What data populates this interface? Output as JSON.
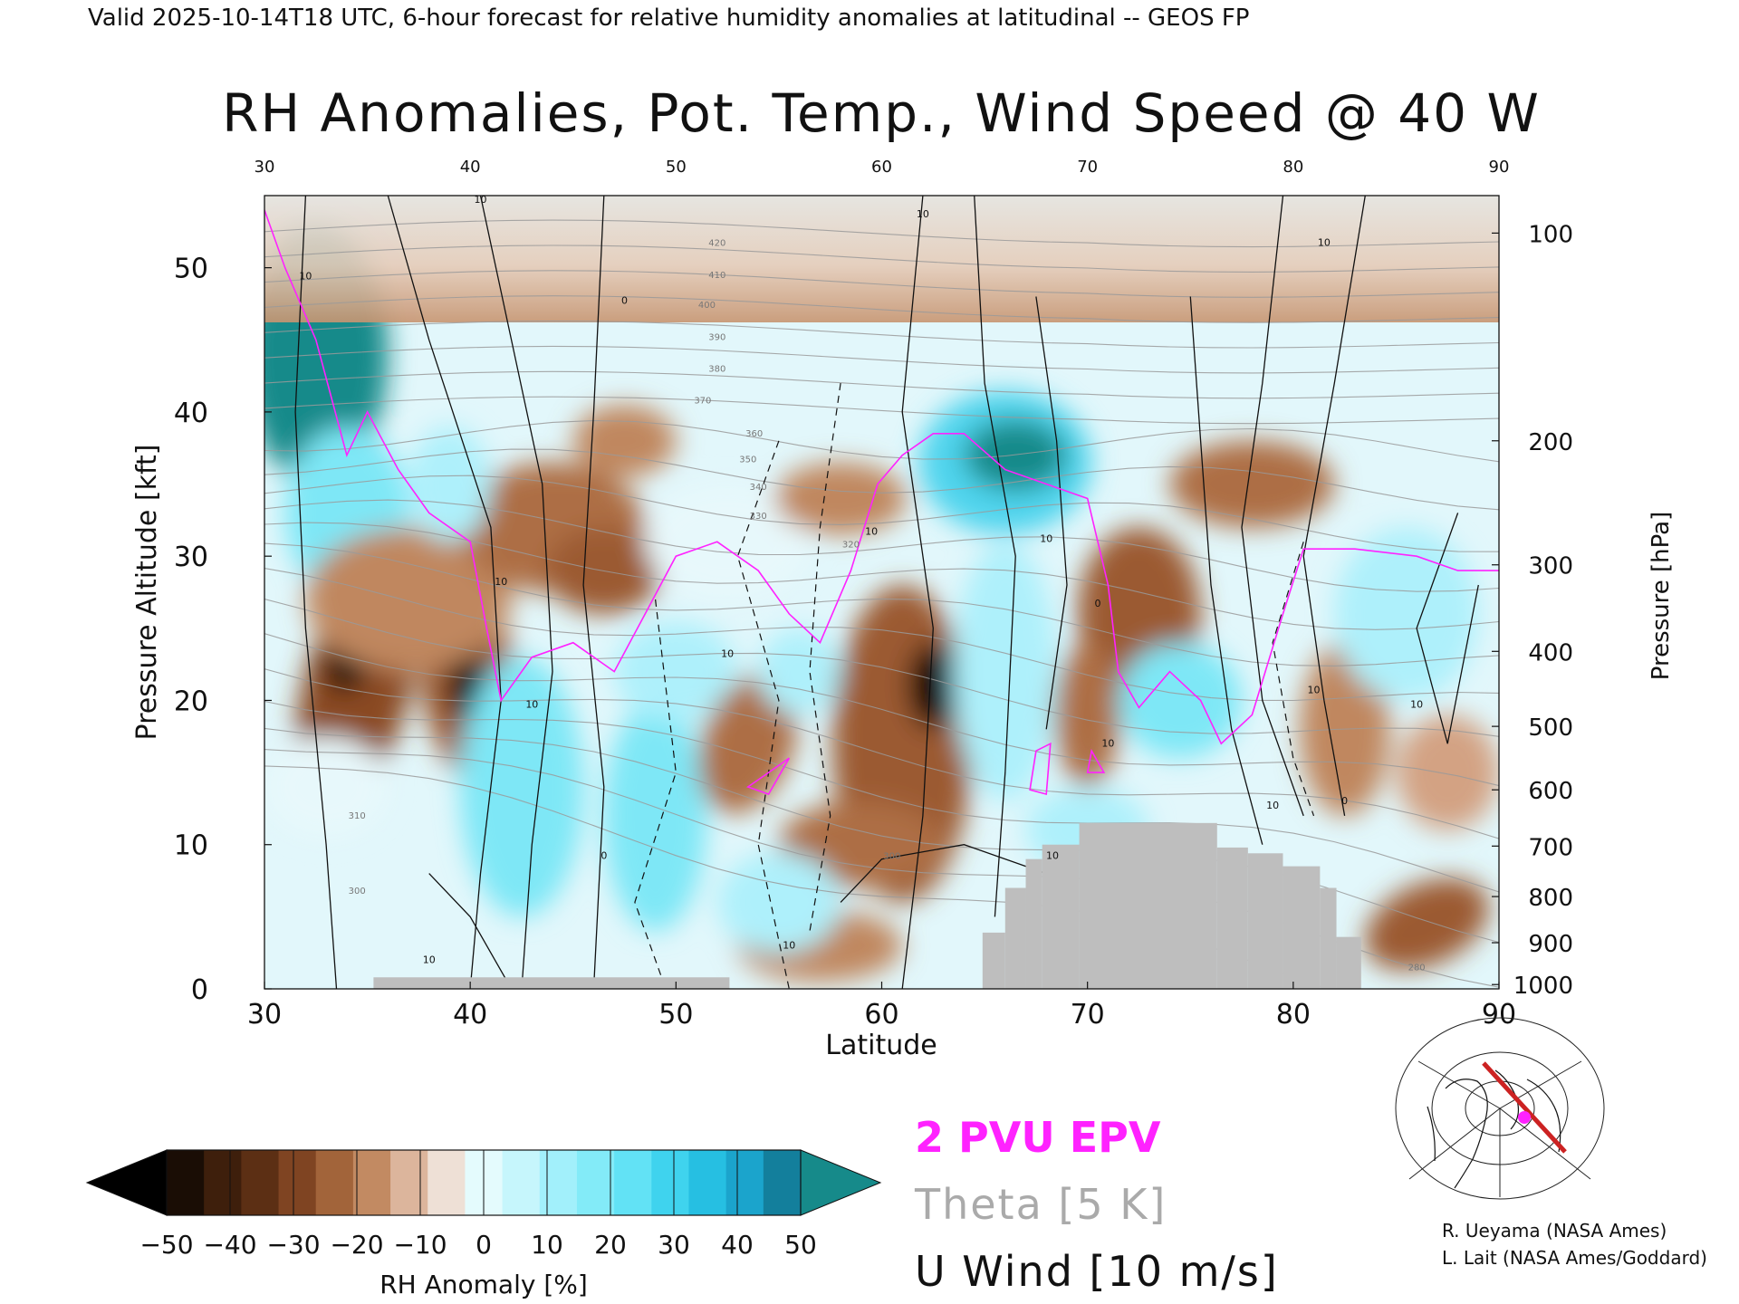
{
  "header": "Valid 2025-10-14T18 UTC, 6-hour forecast for relative humidity anomalies at latitudinal -- GEOS FP",
  "chart_data": {
    "type": "heatmap",
    "title": "RH Anomalies, Pot. Temp., Wind Speed @ 40 W",
    "xlabel": "Latitude",
    "ylabel": "Pressure Altitude [kft]",
    "y2label": "Pressure [hPa]",
    "xlim": [
      30,
      90
    ],
    "ylim": [
      0,
      55
    ],
    "x_ticks": [
      30,
      40,
      50,
      60,
      70,
      80,
      90
    ],
    "y_ticks": [
      0,
      10,
      20,
      30,
      40,
      50
    ],
    "pressure_ticks": [
      {
        "hpa": 100,
        "kft": 52.4
      },
      {
        "hpa": 200,
        "kft": 38.0
      },
      {
        "hpa": 300,
        "kft": 29.4
      },
      {
        "hpa": 400,
        "kft": 23.4
      },
      {
        "hpa": 500,
        "kft": 18.2
      },
      {
        "hpa": 600,
        "kft": 13.8
      },
      {
        "hpa": 700,
        "kft": 9.9
      },
      {
        "hpa": 800,
        "kft": 6.4
      },
      {
        "hpa": 900,
        "kft": 3.2
      },
      {
        "hpa": 1000,
        "kft": 0.3
      }
    ],
    "colorbar": {
      "label": "RH Anomaly [%]",
      "ticks": [
        -50,
        -40,
        -30,
        -20,
        -10,
        0,
        10,
        20,
        30,
        40,
        50
      ],
      "colors": [
        "#8a4a22",
        "#9b5a30",
        "#ad6e44",
        "#c0875f",
        "#d3a283",
        "#e6cbb8",
        "#e7f8fb",
        "#aef0fb",
        "#7ee7f6",
        "#4fd4ed",
        "#24b4d6"
      ],
      "under_color": "#000000",
      "over_color": "#168a8a"
    },
    "overlays": [
      {
        "name": "2 PVU EPV",
        "color": "#ff22ff"
      },
      {
        "name": "Theta [5 K]",
        "color": "#aaaaaa"
      },
      {
        "name": "U Wind [10 m/s]",
        "color": "#111111"
      }
    ],
    "theta_labels": [
      {
        "value": 420,
        "lat": 52,
        "kft": 51.5
      },
      {
        "value": 410,
        "lat": 52,
        "kft": 49.3
      },
      {
        "value": 400,
        "lat": 51.5,
        "kft": 47.2
      },
      {
        "value": 390,
        "lat": 52,
        "kft": 45.0
      },
      {
        "value": 380,
        "lat": 52,
        "kft": 42.8
      },
      {
        "value": 370,
        "lat": 51.3,
        "kft": 40.6
      },
      {
        "value": 360,
        "lat": 53.8,
        "kft": 38.3
      },
      {
        "value": 350,
        "lat": 53.5,
        "kft": 36.5
      },
      {
        "value": 340,
        "lat": 54,
        "kft": 34.6
      },
      {
        "value": 330,
        "lat": 54,
        "kft": 32.6
      },
      {
        "value": 320,
        "lat": 58.5,
        "kft": 30.6
      },
      {
        "value": 310,
        "lat": 34.5,
        "kft": 11.8
      },
      {
        "value": 300,
        "lat": 60.5,
        "kft": 9.0
      },
      {
        "value": 300,
        "lat": 34.5,
        "kft": 6.6
      },
      {
        "value": 280,
        "lat": 86,
        "kft": 1.3
      }
    ],
    "wind_labels": [
      {
        "value": 10,
        "lat": 40.5,
        "kft": 54.5
      },
      {
        "value": 0,
        "lat": 47.5,
        "kft": 47.5
      },
      {
        "value": 10,
        "lat": 62,
        "kft": 53.5
      },
      {
        "value": 10,
        "lat": 81.5,
        "kft": 51.5
      },
      {
        "value": 10,
        "lat": 32,
        "kft": 49.2
      },
      {
        "value": 10,
        "lat": 41.5,
        "kft": 28
      },
      {
        "value": 10,
        "lat": 43,
        "kft": 19.5
      },
      {
        "value": 10,
        "lat": 59.5,
        "kft": 31.5
      },
      {
        "value": 10,
        "lat": 68,
        "kft": 31.0
      },
      {
        "value": 0,
        "lat": 70.5,
        "kft": 26.5
      },
      {
        "value": 10,
        "lat": 52.5,
        "kft": 23.0
      },
      {
        "value": 10,
        "lat": 81,
        "kft": 20.5
      },
      {
        "value": 10,
        "lat": 86,
        "kft": 19.5
      },
      {
        "value": 0,
        "lat": 46.5,
        "kft": 9.0
      },
      {
        "value": 10,
        "lat": 38,
        "kft": 1.8
      },
      {
        "value": 10,
        "lat": 55.5,
        "kft": 2.8
      },
      {
        "value": 10,
        "lat": 68.3,
        "kft": 9.0
      },
      {
        "value": 10,
        "lat": 79,
        "kft": 12.5
      },
      {
        "value": 0,
        "lat": 82.5,
        "kft": 12.8
      },
      {
        "value": 10,
        "lat": 71,
        "kft": 16.8
      }
    ],
    "terrain": [
      {
        "lat0": 35.3,
        "lat1": 52.6,
        "top_kft": 0.8
      },
      {
        "lat0": 64.9,
        "lat1": 66.0,
        "top_kft": 3.9
      },
      {
        "lat0": 66.0,
        "lat1": 67.0,
        "top_kft": 7.0
      },
      {
        "lat0": 67.0,
        "lat1": 67.8,
        "top_kft": 9.0
      },
      {
        "lat0": 67.8,
        "lat1": 69.6,
        "top_kft": 10.0
      },
      {
        "lat0": 69.6,
        "lat1": 76.3,
        "top_kft": 11.5
      },
      {
        "lat0": 76.3,
        "lat1": 77.8,
        "top_kft": 9.8
      },
      {
        "lat0": 77.8,
        "lat1": 79.5,
        "top_kft": 9.4
      },
      {
        "lat0": 79.5,
        "lat1": 81.3,
        "top_kft": 8.5
      },
      {
        "lat0": 81.3,
        "lat1": 82.1,
        "top_kft": 7.0
      },
      {
        "lat0": 82.1,
        "lat1": 83.3,
        "top_kft": 3.6
      }
    ],
    "grid": false
  },
  "legend": {
    "epv": "2 PVU EPV",
    "theta": "Theta [5 K]",
    "uwind": "U Wind [10 m/s]"
  },
  "credits": {
    "line1": "R. Ueyama (NASA Ames)",
    "line2": "L. Lait (NASA Ames/Goddard)"
  }
}
